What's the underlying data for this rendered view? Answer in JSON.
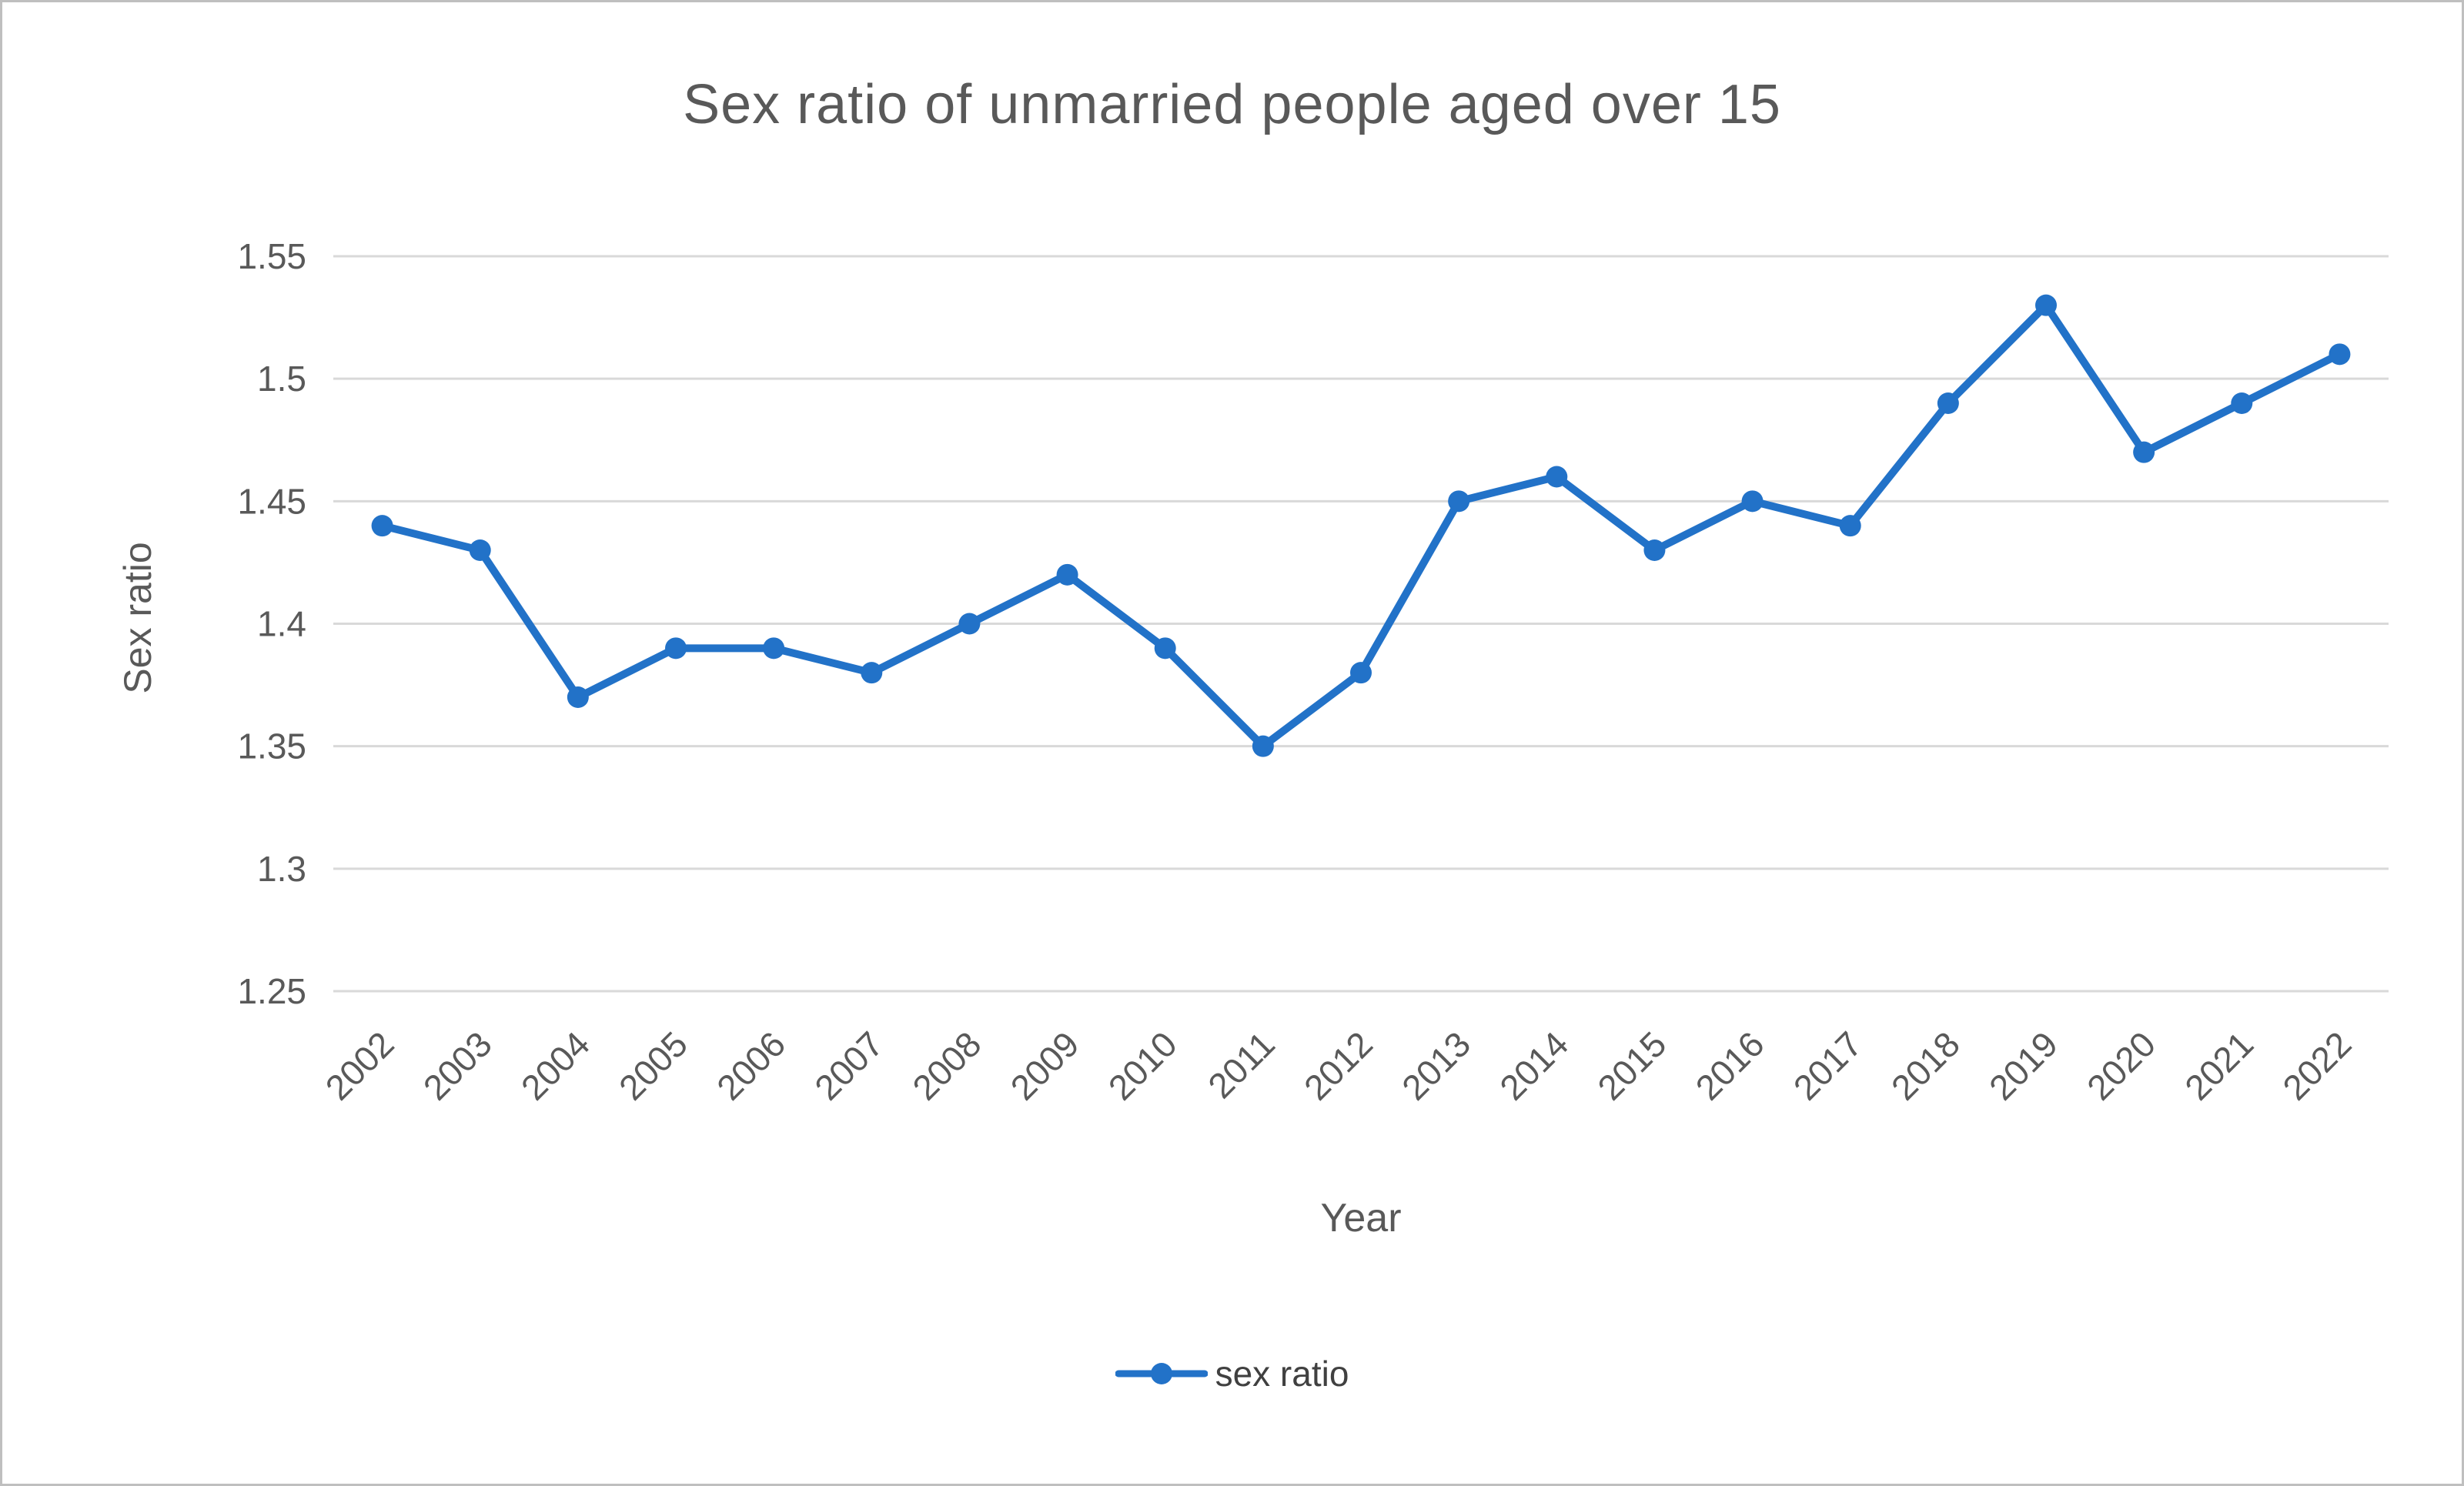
{
  "chart_data": {
    "type": "line",
    "title": "Sex ratio of unmarried people aged over 15",
    "xlabel": "Year",
    "ylabel": "Sex ratio",
    "categories": [
      "2002",
      "2003",
      "2004",
      "2005",
      "2006",
      "2007",
      "2008",
      "2009",
      "2010",
      "2011",
      "2012",
      "2013",
      "2014",
      "2015",
      "2016",
      "2017",
      "2018",
      "2019",
      "2020",
      "2021",
      "2022"
    ],
    "values": [
      1.44,
      1.43,
      1.37,
      1.39,
      1.39,
      1.38,
      1.4,
      1.42,
      1.39,
      1.35,
      1.38,
      1.45,
      1.46,
      1.43,
      1.45,
      1.44,
      1.49,
      1.53,
      1.47,
      1.49,
      1.51
    ],
    "ylim": [
      1.25,
      1.55
    ],
    "yticks": [
      1.25,
      1.3,
      1.35,
      1.4,
      1.45,
      1.5,
      1.55
    ],
    "ytick_labels": [
      "1.25",
      "1.3",
      "1.35",
      "1.4",
      "1.45",
      "1.5",
      "1.55"
    ],
    "legend": [
      "sex ratio"
    ],
    "legend_position": "bottom",
    "grid": "horizontal"
  },
  "colors": {
    "line": "#2272C8",
    "grid": "#D9D9D9",
    "text": "#595959",
    "frame_border": "#BFBFBF"
  }
}
